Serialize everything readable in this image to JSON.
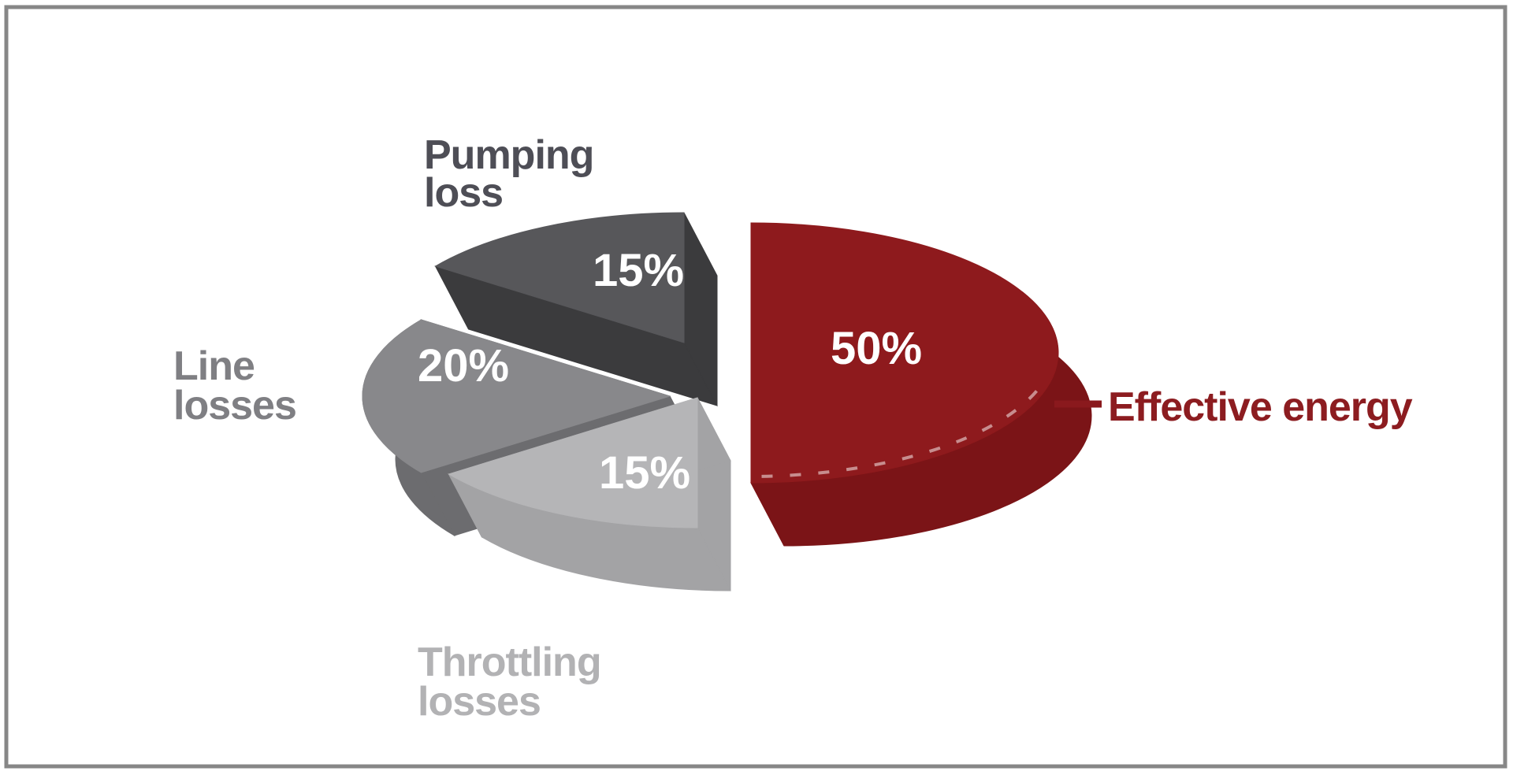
{
  "figure": {
    "border_color": "#878787",
    "background_color": "#ffffff"
  },
  "chart_data": {
    "type": "pie",
    "style": "3d-exploded",
    "unit": "%",
    "title": "",
    "legend_position": "around-slices",
    "percent_label_color": "#ffffff",
    "slices": [
      {
        "id": "pumping",
        "label": "Pumping loss",
        "label_lines": [
          "Pumping",
          "loss"
        ],
        "value": 15,
        "display": "15%",
        "color_top": "#57575a",
        "color_side": "#3b3b3d",
        "label_color": "#4e4e56"
      },
      {
        "id": "line",
        "label": "Line losses",
        "label_lines": [
          "Line",
          "losses"
        ],
        "value": 20,
        "display": "20%",
        "color_top": "#88888b",
        "color_side": "#6c6c6f",
        "label_color": "#7f7f83"
      },
      {
        "id": "throttling",
        "label": "Throttling losses",
        "label_lines": [
          "Throttling",
          "losses"
        ],
        "value": 15,
        "display": "15%",
        "color_top": "#b5b5b7",
        "color_side": "#a3a3a5",
        "label_color": "#b2b2b4"
      },
      {
        "id": "effective",
        "label": "Effective energy",
        "label_lines": [
          "Effective energy"
        ],
        "value": 50,
        "display": "50%",
        "color_top": "#8e1a1d",
        "color_side": "#7b1417",
        "label_color": "#8c1c20"
      }
    ],
    "callout": {
      "target": "effective",
      "text": "Effective energy",
      "line_color": "#8a191d"
    }
  }
}
